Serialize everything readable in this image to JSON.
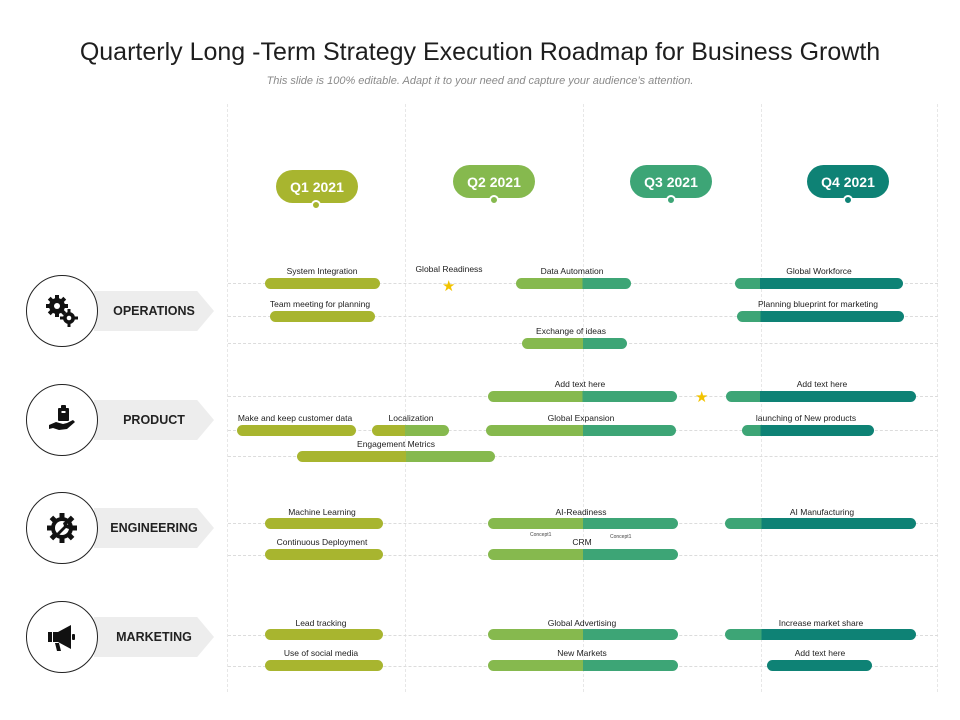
{
  "title": "Quarterly Long -Term Strategy Execution Roadmap for Business Growth",
  "subtitle": "This slide is 100% editable. Adapt it to your need and capture your audience’s attention.",
  "colors": {
    "q1": "#a8b52f",
    "q2": "#86b94e",
    "q3": "#3da576",
    "q4": "#0e8275",
    "star": "#f2c300",
    "label_bg": "#ededed"
  },
  "quarters": [
    {
      "label": "Q1 2021",
      "color": "#a8b52f"
    },
    {
      "label": "Q2 2021",
      "color": "#86b94e"
    },
    {
      "label": "Q3 2021",
      "color": "#3da576"
    },
    {
      "label": "Q4 2021",
      "color": "#0e8275"
    }
  ],
  "categories": [
    {
      "label": "OPERATIONS",
      "icon": "gears-icon"
    },
    {
      "label": "PRODUCT",
      "icon": "hand-with-box-icon"
    },
    {
      "label": "ENGINEERING",
      "icon": "gear-wrench-icon"
    },
    {
      "label": "MARKETING",
      "icon": "megaphone-icon"
    }
  ],
  "tasks": {
    "operations": [
      "System Integration",
      "Team meeting for planning",
      "Global Readiness",
      "Data Automation",
      "Exchange of ideas",
      "Global Workforce",
      "Planning blueprint for marketing"
    ],
    "product": [
      "Add text here",
      "Add text here",
      "Make and keep customer data",
      "Localization",
      "Global Expansion",
      "launching of New  products",
      "Engagement Metrics"
    ],
    "engineering": [
      "Machine Learning",
      "AI-Readiness",
      "AI Manufacturing",
      "Continuous Deployment",
      "CRM",
      "Concept1",
      "Concept1"
    ],
    "marketing": [
      "Lead tracking",
      "Global Advertising",
      "Increase market share",
      "Use of social media",
      "New Markets",
      "Add text here"
    ]
  }
}
